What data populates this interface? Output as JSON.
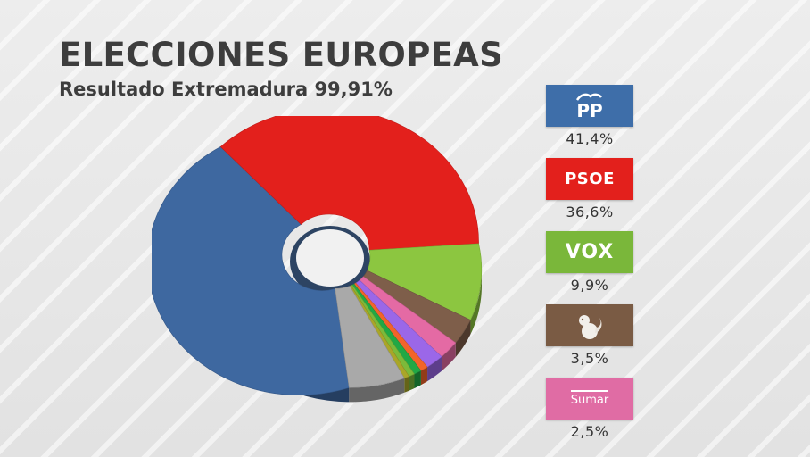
{
  "header": {
    "title": "ELECCIONES EUROPEAS",
    "subtitle": "Resultado Extremadura 99,91%"
  },
  "chart_data": {
    "type": "pie",
    "style": "3d-donut",
    "title": "ELECCIONES EUROPEAS",
    "subtitle": "Resultado Extremadura 99,91%",
    "slices": [
      {
        "label": "PP",
        "value": 41.4,
        "color": "#3e68a0"
      },
      {
        "label": "PSOE",
        "value": 36.6,
        "color": "#e3201c"
      },
      {
        "label": "VOX",
        "value": 9.9,
        "color": "#8cc640"
      },
      {
        "label": "",
        "value": 3.5,
        "color": "#7e5e4a"
      },
      {
        "label": "Sumar",
        "value": 2.5,
        "color": "#e46aa4"
      },
      {
        "label": "",
        "value": 2.2,
        "color": "#9b67e8"
      },
      {
        "label": "",
        "value": 0.9,
        "color": "#f2642a"
      },
      {
        "label": "",
        "value": 0.9,
        "color": "#21a845"
      },
      {
        "label": "",
        "value": 0.7,
        "color": "#7cba3a"
      },
      {
        "label": "",
        "value": 0.6,
        "color": "#a9a628"
      },
      {
        "label": "",
        "value": 6.5,
        "color": "#a9a9a9"
      }
    ]
  },
  "legend": {
    "items": [
      {
        "party": "PP",
        "logo_text": "PP",
        "pct": "41,4%",
        "color": "#3e6ea9",
        "icon": "pp-logo-icon"
      },
      {
        "party": "PSOE",
        "logo_text": "PSOE",
        "pct": "36,6%",
        "color": "#e3201c",
        "icon": "psoe-logo-icon"
      },
      {
        "party": "VOX",
        "logo_text": "VOX",
        "pct": "9,9%",
        "color": "#7ab73a",
        "icon": "vox-logo-icon"
      },
      {
        "party": "",
        "logo_text": "",
        "pct": "3,5%",
        "color": "#7a5b44",
        "icon": "squirrel-logo-icon"
      },
      {
        "party": "Sumar",
        "logo_text": "Sumar",
        "pct": "2,5%",
        "color": "#e06ca4",
        "icon": "sumar-logo-icon"
      }
    ]
  }
}
